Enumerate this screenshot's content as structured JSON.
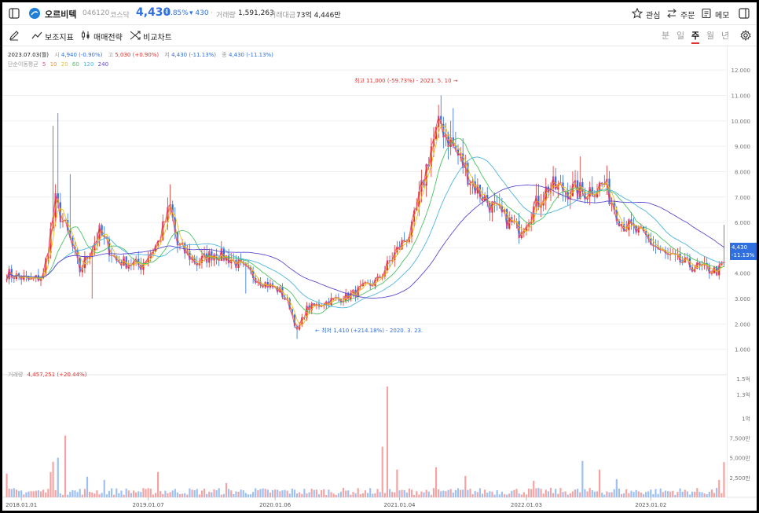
{
  "header": {
    "stock_name": "오르비텍",
    "code": "046120",
    "market": "코스닥",
    "price": "4,430",
    "change_pct": "-8.85%",
    "change_abs": "▾ 430",
    "volume_label": "거래량",
    "volume_value": "1,591,263",
    "amount_label": "거래대금",
    "amount_value": "73억 4,446만",
    "watch_label": "관심",
    "order_label": "주문",
    "memo_label": "메모"
  },
  "toolbar": {
    "indicator_label": "보조지표",
    "strategy_label": "매매전략",
    "compare_label": "비교차트",
    "periods": [
      "분",
      "일",
      "주",
      "월",
      "년"
    ],
    "active_period": "주"
  },
  "ohlc": {
    "date": "2023.07.03(월)",
    "open_label": "시",
    "open": "4,940 (-0.90%)",
    "high_label": "고",
    "high": "5,030 (+0.90%)",
    "low_label": "저",
    "low": "4,430 (-11.13%)",
    "close_label": "종",
    "close": "4,430 (-11.13%)"
  },
  "ma_legend": {
    "label": "단순이동평균",
    "periods": [
      "5",
      "10",
      "20",
      "60",
      "120",
      "240"
    ],
    "colors": [
      "#e84a8a",
      "#f0902b",
      "#e7c21c",
      "#4cc262",
      "#4fb5e0",
      "#5b4bd0"
    ]
  },
  "annotations": {
    "high": "최고 11,000 (-59.73%) - 2021. 5. 10 →",
    "low": "← 최저 1,410 (+214.18%) - 2020. 3. 23."
  },
  "price_tag": {
    "price": "4,430",
    "pct": "-11.13%"
  },
  "volume_header": {
    "label": "거래량",
    "value": "4,457,251 (+20.44%)"
  },
  "colors": {
    "up": "#e0312e",
    "down": "#2f6fdf",
    "up_vol": "#f4a3a3",
    "down_vol": "#9cc0f0",
    "grid": "#f0f0f0"
  },
  "chart_data": {
    "type": "candlestick",
    "price_axis_ticks": [
      "12.000",
      "11.000",
      "10.000",
      "9.000",
      "8.000",
      "7.000",
      "6.000",
      "5.000",
      "4.000",
      "3.000",
      "2.000",
      "1.000"
    ],
    "price_ylim": [
      0,
      12500
    ],
    "volume_axis_ticks": [
      "1.5억",
      "1.3억",
      "1억",
      "7,500만",
      "5,000만",
      "2,500만"
    ],
    "volume_ylim": [
      0,
      15500000
    ],
    "x_tick_labels": [
      "2018.01.01",
      "2019.01.07",
      "2020.01.06",
      "2021.01.04",
      "2022.01.03",
      "2023.01.02"
    ],
    "x_tick_positions": [
      6,
      58,
      110,
      161,
      213,
      264
    ],
    "close_anchors": [
      [
        0,
        4000
      ],
      [
        10,
        3700
      ],
      [
        15,
        3900
      ],
      [
        20,
        6800
      ],
      [
        26,
        5300
      ],
      [
        30,
        4100
      ],
      [
        38,
        5600
      ],
      [
        45,
        4500
      ],
      [
        55,
        4300
      ],
      [
        62,
        5200
      ],
      [
        67,
        6600
      ],
      [
        70,
        5100
      ],
      [
        78,
        4400
      ],
      [
        85,
        4800
      ],
      [
        92,
        4550
      ],
      [
        98,
        4100
      ],
      [
        106,
        3600
      ],
      [
        112,
        3300
      ],
      [
        116,
        2700
      ],
      [
        119,
        1700
      ],
      [
        123,
        2600
      ],
      [
        132,
        2900
      ],
      [
        140,
        3100
      ],
      [
        152,
        3700
      ],
      [
        160,
        4900
      ],
      [
        166,
        5700
      ],
      [
        170,
        7300
      ],
      [
        174,
        9000
      ],
      [
        178,
        9900
      ],
      [
        184,
        8800
      ],
      [
        192,
        7400
      ],
      [
        200,
        6500
      ],
      [
        210,
        5700
      ],
      [
        222,
        7400
      ],
      [
        236,
        7200
      ],
      [
        245,
        7500
      ],
      [
        252,
        6000
      ],
      [
        262,
        5400
      ],
      [
        270,
        4700
      ],
      [
        280,
        4300
      ],
      [
        287,
        4150
      ],
      [
        292,
        4100
      ],
      [
        294,
        4430
      ]
    ],
    "volume_spikes": [
      [
        0,
        3000000
      ],
      [
        18,
        3200000
      ],
      [
        19,
        4500000
      ],
      [
        21,
        5000000
      ],
      [
        24,
        7800000
      ],
      [
        33,
        2600000
      ],
      [
        40,
        2200000
      ],
      [
        62,
        3200000
      ],
      [
        90,
        1800000
      ],
      [
        154,
        6400000
      ],
      [
        156,
        14000000
      ],
      [
        160,
        3500000
      ],
      [
        176,
        3800000
      ],
      [
        188,
        2700000
      ],
      [
        216,
        2100000
      ],
      [
        236,
        4600000
      ],
      [
        243,
        3500000
      ],
      [
        250,
        2300000
      ],
      [
        292,
        2200000
      ],
      [
        294,
        4457251
      ]
    ],
    "candle_count": 295
  }
}
